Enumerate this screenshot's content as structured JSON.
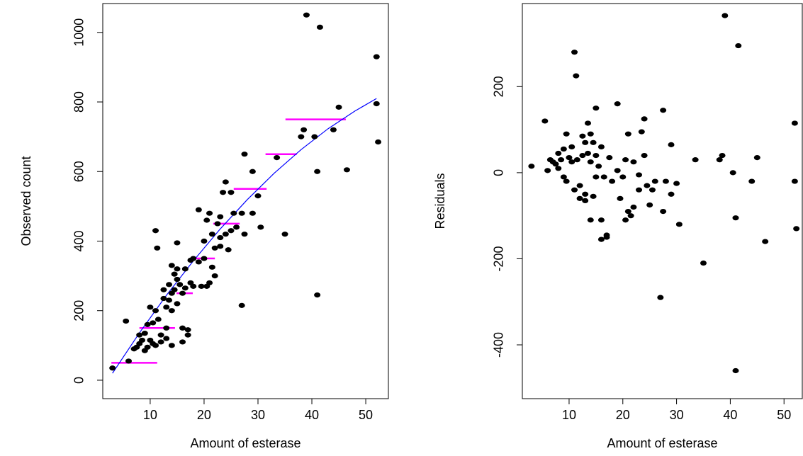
{
  "chart_data": [
    {
      "type": "scatter",
      "xlabel": "Amount of esterase",
      "ylabel": "Observed count",
      "color": "#000000",
      "xlim": [
        1.2,
        54.2
      ],
      "ylim": [
        -53,
        1083
      ],
      "xticks": [
        10,
        20,
        30,
        40,
        50
      ],
      "yticks": [
        0,
        200,
        400,
        600,
        800,
        1000
      ],
      "x": [
        3,
        5.5,
        6,
        7,
        7.5,
        8,
        8.5,
        8,
        9,
        9,
        9.5,
        9.5,
        10,
        10,
        10.5,
        10.5,
        11,
        11,
        11,
        11.3,
        11.5,
        12,
        12,
        12.5,
        12.5,
        13,
        13,
        13,
        13.5,
        13.5,
        14,
        14,
        14,
        14,
        14.5,
        14.5,
        15,
        15,
        15,
        15,
        15.5,
        16,
        16,
        16,
        16.5,
        16.5,
        17,
        17,
        17.5,
        17.5,
        18,
        18,
        19,
        19,
        19.5,
        20,
        20,
        20.5,
        20.5,
        21,
        21,
        21.5,
        21.5,
        22,
        22,
        22.5,
        23,
        23,
        23,
        23.5,
        24,
        24,
        24.5,
        25,
        25,
        25.5,
        26,
        27,
        27,
        27.5,
        27.5,
        29,
        29,
        30,
        30.5,
        33.5,
        35,
        38,
        38.5,
        39,
        40.5,
        41,
        41,
        41.5,
        44,
        45,
        46.5,
        52,
        52,
        52.3
      ],
      "values": [
        35,
        170,
        55,
        90,
        95,
        130,
        115,
        105,
        85,
        135,
        160,
        95,
        210,
        115,
        105,
        165,
        200,
        100,
        430,
        380,
        175,
        130,
        110,
        260,
        235,
        210,
        150,
        120,
        275,
        230,
        330,
        250,
        200,
        100,
        305,
        260,
        320,
        290,
        220,
        395,
        275,
        150,
        250,
        110,
        320,
        265,
        145,
        130,
        280,
        345,
        350,
        270,
        490,
        340,
        270,
        350,
        400,
        460,
        270,
        480,
        280,
        325,
        420,
        300,
        380,
        450,
        470,
        410,
        385,
        540,
        570,
        420,
        375,
        540,
        430,
        480,
        440,
        480,
        215,
        650,
        420,
        600,
        480,
        530,
        440,
        640,
        420,
        700,
        720,
        1050,
        700,
        245,
        600,
        1015,
        720,
        785,
        605,
        930,
        795,
        685
      ],
      "fit": {
        "color": "#0000ff",
        "x": [
          3,
          8,
          13,
          18,
          23,
          28,
          33,
          38,
          43,
          48,
          52
        ],
        "values": [
          20,
          136,
          244,
          343,
          435,
          519,
          595,
          663,
          723,
          774,
          810
        ]
      },
      "bin_means": {
        "color": "#ff00ff",
        "x_start": [
          2.8,
          8,
          14.9,
          18.4,
          21.7,
          25.5,
          31.4,
          35.1
        ],
        "x_end": [
          11.3,
          14.6,
          17.9,
          22,
          26.6,
          31.6,
          37.2,
          46.3
        ],
        "values": [
          50,
          150,
          250,
          350,
          450,
          550,
          650,
          750
        ]
      }
    },
    {
      "type": "scatter",
      "xlabel": "Amount of esterase",
      "ylabel": "Residuals",
      "color": "#000000",
      "xlim": [
        1.3,
        53.4
      ],
      "ylim": [
        -525,
        393
      ],
      "xticks": [
        10,
        20,
        30,
        40,
        50
      ],
      "yticks": [
        -400,
        -200,
        0,
        200
      ],
      "x": [
        3,
        5.5,
        6,
        6.5,
        7,
        7.5,
        8,
        8,
        8.5,
        9,
        9,
        9.5,
        9.5,
        10,
        10.5,
        10.5,
        11,
        11,
        11.3,
        11.5,
        12,
        12,
        12.5,
        12.5,
        13,
        13,
        13,
        13.5,
        13.5,
        14,
        14,
        14,
        14.5,
        14.5,
        15,
        15,
        15,
        15.5,
        16,
        16,
        16,
        16.5,
        17,
        17,
        17.5,
        18,
        19,
        19,
        19.5,
        20,
        20.5,
        20.5,
        21,
        21,
        21.5,
        22,
        22,
        23,
        23,
        23.5,
        24,
        24,
        24.5,
        25,
        25.5,
        26,
        27,
        27.5,
        27.5,
        28,
        29,
        29,
        30,
        30.5,
        33.5,
        35,
        38,
        38.5,
        39,
        40.5,
        41,
        41,
        41.5,
        44,
        45,
        46.5,
        52,
        52,
        52.3
      ],
      "values": [
        15,
        120,
        5,
        30,
        25,
        20,
        45,
        10,
        30,
        55,
        -10,
        -20,
        90,
        35,
        25,
        60,
        -40,
        280,
        225,
        30,
        -30,
        -60,
        85,
        40,
        70,
        -50,
        -65,
        45,
        115,
        90,
        -110,
        25,
        70,
        -55,
        150,
        40,
        -10,
        15,
        -110,
        -155,
        60,
        -10,
        -145,
        -150,
        35,
        -20,
        160,
        5,
        -60,
        -10,
        30,
        -110,
        90,
        -90,
        -100,
        -80,
        25,
        -5,
        -40,
        95,
        40,
        125,
        -30,
        -75,
        -40,
        -20,
        -290,
        145,
        -90,
        -20,
        65,
        -50,
        -25,
        -120,
        30,
        -210,
        30,
        40,
        365,
        0,
        -460,
        -105,
        295,
        -20,
        35,
        -160,
        115,
        -20,
        -130
      ]
    }
  ]
}
